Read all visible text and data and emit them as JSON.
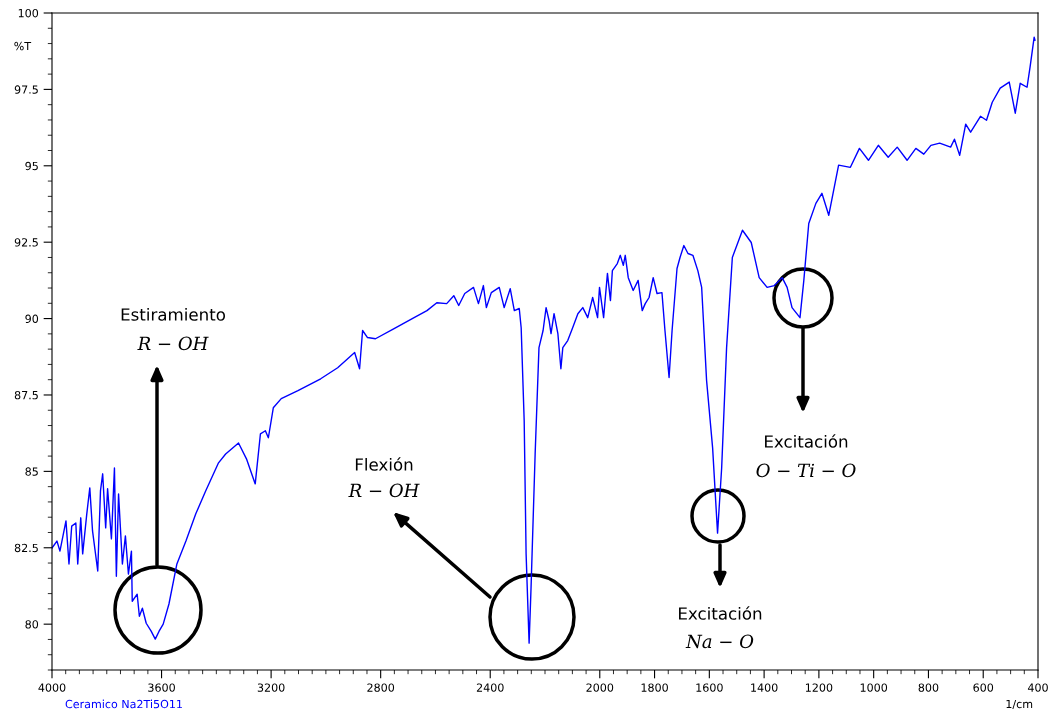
{
  "chart_data": {
    "type": "line",
    "xlabel": "1/cm",
    "ylabel": "%T",
    "xlim": [
      4000,
      400
    ],
    "ylim": [
      78.5,
      100
    ],
    "xticks": [
      4000,
      3600,
      3200,
      2800,
      2400,
      2000,
      1800,
      1600,
      1400,
      1200,
      1000,
      800,
      600,
      400
    ],
    "yticks": [
      80,
      82.5,
      85,
      87.5,
      90,
      92.5,
      95,
      97.5,
      100
    ],
    "grid": false,
    "legend": false,
    "marker": "none",
    "line_style": "solid",
    "series": [
      {
        "color": "#0000ff",
        "x": [
          4000,
          3982,
          3971,
          3949,
          3938,
          3928,
          3913,
          3906,
          3895,
          3888,
          3873,
          3862,
          3852,
          3833,
          3823,
          3815,
          3804,
          3797,
          3783,
          3772,
          3765,
          3757,
          3743,
          3732,
          3721,
          3710,
          3707,
          3689,
          3681,
          3670,
          3656,
          3638,
          3623,
          3609,
          3594,
          3573,
          3544,
          3511,
          3475,
          3439,
          3392,
          3366,
          3319,
          3290,
          3258,
          3239,
          3221,
          3210,
          3192,
          3163,
          3102,
          3019,
          2957,
          2895,
          2877,
          2866,
          2848,
          2819,
          2751,
          2678,
          2631,
          2595,
          2559,
          2533,
          2515,
          2493,
          2461,
          2443,
          2425,
          2414,
          2396,
          2367,
          2349,
          2327,
          2312,
          2294,
          2287,
          2276,
          2269,
          2258,
          2251,
          2236,
          2222,
          2207,
          2196,
          2185,
          2178,
          2167,
          2153,
          2142,
          2135,
          2117,
          2099,
          2080,
          2062,
          2044,
          2026,
          2008,
          2001,
          1986,
          1972,
          1961,
          1954,
          1936,
          1925,
          1914,
          1907,
          1896,
          1878,
          1860,
          1845,
          1834,
          1820,
          1805,
          1791,
          1773,
          1762,
          1747,
          1736,
          1718,
          1707,
          1693,
          1678,
          1660,
          1642,
          1628,
          1610,
          1588,
          1570,
          1555,
          1537,
          1516,
          1479,
          1447,
          1418,
          1389,
          1363,
          1334,
          1316,
          1298,
          1269,
          1255,
          1237,
          1211,
          1189,
          1164,
          1139,
          1128,
          1085,
          1052,
          1019,
          983,
          947,
          914,
          878,
          846,
          817,
          791,
          759,
          719,
          705,
          686,
          664,
          646,
          610,
          588,
          567,
          538,
          505,
          483,
          465,
          440,
          429,
          414,
          411
        ],
        "values": [
          82.49,
          82.72,
          82.39,
          83.38,
          81.97,
          83.21,
          83.31,
          81.97,
          83.48,
          82.3,
          83.61,
          84.46,
          83.05,
          81.74,
          84.36,
          84.92,
          83.15,
          84.43,
          82.79,
          85.11,
          81.57,
          84.26,
          81.97,
          82.89,
          81.64,
          82.39,
          80.75,
          80.98,
          80.26,
          80.52,
          80.03,
          79.77,
          79.51,
          79.77,
          80.0,
          80.66,
          81.97,
          82.72,
          83.61,
          84.36,
          85.28,
          85.57,
          85.93,
          85.41,
          84.59,
          86.23,
          86.33,
          86.1,
          87.08,
          87.38,
          87.64,
          88.03,
          88.39,
          88.89,
          88.36,
          89.61,
          89.38,
          89.34,
          89.67,
          90.03,
          90.26,
          90.52,
          90.49,
          90.75,
          90.43,
          90.82,
          91.02,
          90.49,
          91.08,
          90.36,
          90.85,
          91.02,
          90.36,
          90.98,
          90.26,
          90.33,
          89.7,
          86.66,
          82.3,
          79.38,
          81.18,
          85.57,
          89.05,
          89.61,
          90.36,
          89.93,
          89.51,
          90.16,
          89.51,
          88.36,
          89.05,
          89.28,
          89.7,
          90.16,
          90.36,
          90.03,
          90.69,
          90.03,
          91.02,
          90.03,
          91.48,
          90.59,
          91.57,
          91.8,
          92.07,
          91.74,
          92.07,
          91.34,
          90.92,
          91.25,
          90.26,
          90.49,
          90.69,
          91.34,
          90.82,
          90.85,
          89.61,
          88.07,
          89.61,
          91.64,
          92.0,
          92.39,
          92.13,
          92.07,
          91.57,
          91.02,
          87.97,
          85.77,
          82.98,
          85.11,
          89.05,
          92.0,
          92.89,
          92.49,
          91.34,
          91.02,
          91.08,
          91.34,
          91.02,
          90.36,
          90.03,
          91.25,
          93.11,
          93.77,
          94.1,
          93.38,
          94.52,
          95.02,
          94.95,
          95.57,
          95.18,
          95.67,
          95.28,
          95.61,
          95.18,
          95.57,
          95.38,
          95.67,
          95.74,
          95.61,
          95.87,
          95.34,
          96.36,
          96.1,
          96.62,
          96.49,
          97.08,
          97.54,
          97.74,
          96.72,
          97.7,
          97.57,
          98.23,
          99.21,
          99.11
        ]
      }
    ],
    "annotations": [
      "Estiramiento\nR − OH",
      "Flexión\nR − OH",
      "Excitación\nNa − O",
      "Excitación\nO − Ti − O",
      "Ceramico Na2Ti5O11"
    ]
  }
}
